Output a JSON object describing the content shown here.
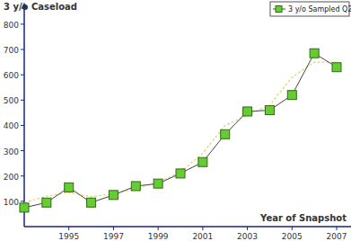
{
  "chart_data": {
    "type": "line",
    "y_label": "3 y/o Caseload",
    "x_label": "Year of Snapshot",
    "x": [
      1993,
      1994,
      1995,
      1996,
      1997,
      1998,
      1999,
      2000,
      2001,
      2002,
      2003,
      2004,
      2005,
      2006,
      2007
    ],
    "series": [
      {
        "name": "3 y/o Sampled Q2",
        "color": "#66cc33",
        "marker": "square",
        "line_style": "solid",
        "values": [
          75,
          95,
          155,
          95,
          125,
          160,
          170,
          210,
          255,
          365,
          455,
          460,
          520,
          685,
          630
        ]
      },
      {
        "color": "#d8d86c",
        "marker": "none",
        "line_style": "dashed",
        "values": [
          95,
          120,
          135,
          118,
          130,
          150,
          175,
          215,
          290,
          400,
          440,
          480,
          590,
          650,
          650
        ]
      }
    ],
    "xlim": [
      1993,
      2007.5
    ],
    "ylim": [
      0,
      850
    ],
    "xticks": [
      1995,
      1997,
      1999,
      2001,
      2003,
      2005,
      2007
    ],
    "yticks": [
      100,
      200,
      300,
      400,
      500,
      600,
      700,
      800
    ],
    "legend": "top-right",
    "grid": false
  }
}
